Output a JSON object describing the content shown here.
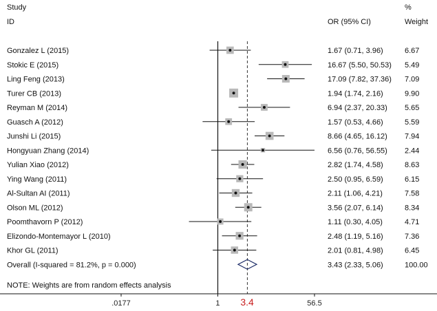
{
  "header": {
    "study": "Study",
    "id": "ID",
    "or_header": "OR (95% CI)",
    "pct": "%",
    "weight_header": "Weight"
  },
  "chart_data": {
    "type": "forest",
    "x_scale": "log",
    "x_ticks": [
      {
        "value": 0.0177,
        "label": ".0177"
      },
      {
        "value": 1,
        "label": "1"
      },
      {
        "value": 56.5,
        "label": "56.5"
      }
    ],
    "x_range": [
      0.0177,
      56.5
    ],
    "null_line": 1,
    "reference_line": {
      "value": 3.43,
      "style": "dashed"
    },
    "highlight_label": {
      "value": 3.4,
      "text": "3.4",
      "color": "#c81e1e"
    },
    "studies": [
      {
        "name": "Gonzalez L  (2015)",
        "or": 1.67,
        "lo": 0.71,
        "hi": 3.96,
        "ci_text": "1.67 (0.71, 3.96)",
        "weight": 6.67,
        "weight_text": "6.67"
      },
      {
        "name": "Stokic E  (2015)",
        "or": 16.67,
        "lo": 5.5,
        "hi": 50.53,
        "ci_text": "16.67 (5.50, 50.53)",
        "weight": 5.49,
        "weight_text": "5.49"
      },
      {
        "name": "Ling Feng  (2013)",
        "or": 17.09,
        "lo": 7.82,
        "hi": 37.36,
        "ci_text": "17.09 (7.82, 37.36)",
        "weight": 7.09,
        "weight_text": "7.09"
      },
      {
        "name": "Turer CB  (2013)",
        "or": 1.94,
        "lo": 1.74,
        "hi": 2.16,
        "ci_text": "1.94 (1.74, 2.16)",
        "weight": 9.9,
        "weight_text": "9.90"
      },
      {
        "name": "Reyman M  (2014)",
        "or": 6.94,
        "lo": 2.37,
        "hi": 20.33,
        "ci_text": "6.94 (2.37, 20.33)",
        "weight": 5.65,
        "weight_text": "5.65"
      },
      {
        "name": "Guasch A  (2012)",
        "or": 1.57,
        "lo": 0.53,
        "hi": 4.66,
        "ci_text": "1.57 (0.53, 4.66)",
        "weight": 5.59,
        "weight_text": "5.59"
      },
      {
        "name": "Junshi Li  (2015)",
        "or": 8.66,
        "lo": 4.65,
        "hi": 16.12,
        "ci_text": "8.66 (4.65, 16.12)",
        "weight": 7.94,
        "weight_text": "7.94"
      },
      {
        "name": "Hongyuan Zhang  (2014)",
        "or": 6.56,
        "lo": 0.76,
        "hi": 56.55,
        "ci_text": "6.56 (0.76, 56.55)",
        "weight": 2.44,
        "weight_text": "2.44"
      },
      {
        "name": "Yulian Xiao  (2012)",
        "or": 2.82,
        "lo": 1.74,
        "hi": 4.58,
        "ci_text": "2.82 (1.74, 4.58)",
        "weight": 8.63,
        "weight_text": "8.63"
      },
      {
        "name": "Ying Wang  (2011)",
        "or": 2.5,
        "lo": 0.95,
        "hi": 6.59,
        "ci_text": "2.50 (0.95, 6.59)",
        "weight": 6.15,
        "weight_text": "6.15"
      },
      {
        "name": "Al-Sultan AI  (2011)",
        "or": 2.11,
        "lo": 1.06,
        "hi": 4.21,
        "ci_text": "2.11 (1.06, 4.21)",
        "weight": 7.58,
        "weight_text": "7.58"
      },
      {
        "name": "Olson ML  (2012)",
        "or": 3.56,
        "lo": 2.07,
        "hi": 6.14,
        "ci_text": "3.56 (2.07, 6.14)",
        "weight": 8.34,
        "weight_text": "8.34"
      },
      {
        "name": "Poomthavorn P  (2012)",
        "or": 1.11,
        "lo": 0.3,
        "hi": 4.05,
        "ci_text": "1.11 (0.30, 4.05)",
        "weight": 4.71,
        "weight_text": "4.71"
      },
      {
        "name": "Elizondo-Montemayor L  (2010)",
        "or": 2.48,
        "lo": 1.19,
        "hi": 5.16,
        "ci_text": "2.48 (1.19, 5.16)",
        "weight": 7.36,
        "weight_text": "7.36"
      },
      {
        "name": "Khor GL  (2011)",
        "or": 2.01,
        "lo": 0.81,
        "hi": 4.98,
        "ci_text": "2.01 (0.81, 4.98)",
        "weight": 6.45,
        "weight_text": "6.45"
      }
    ],
    "overall": {
      "name": "Overall  (I-squared = 81.2%, p = 0.000)",
      "or": 3.43,
      "lo": 2.33,
      "hi": 5.06,
      "ci_text": "3.43 (2.33, 5.06)",
      "weight_text": "100.00"
    },
    "note": "NOTE: Weights are from random effects analysis",
    "colors": {
      "ink": "#111111",
      "box": "#b9b9b9",
      "highlight": "#c81e1e",
      "dashed": "#333333"
    }
  }
}
